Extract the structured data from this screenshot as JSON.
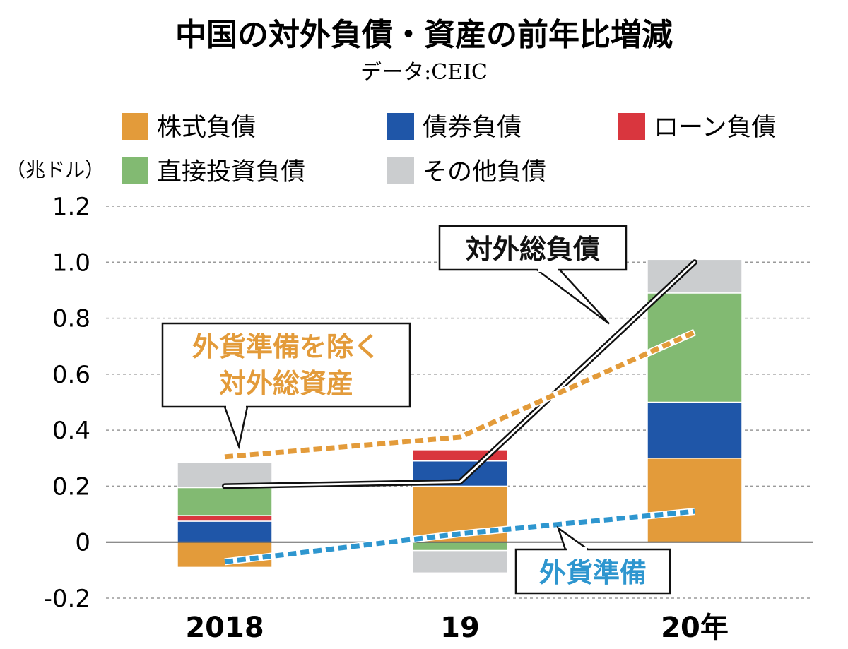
{
  "chart_data": {
    "type": "bar",
    "title": "中国の対外負債・資産の前年比増減",
    "source": "データ:CEIC",
    "unit_label": "（兆ドル）",
    "categories": [
      "2018",
      "19",
      "20年"
    ],
    "ylim": [
      -0.2,
      1.2
    ],
    "yticks": [
      "1.2",
      "1.0",
      "0.8",
      "0.6",
      "0.4",
      "0.2",
      "0",
      "-0.2"
    ],
    "grid": true,
    "legend_position": "top",
    "series": [
      {
        "name": "株式負債",
        "color": "#E39B3A",
        "values": [
          -0.09,
          0.2,
          0.3
        ]
      },
      {
        "name": "債券負債",
        "color": "#1F56A8",
        "values": [
          0.075,
          0.09,
          0.2
        ]
      },
      {
        "name": "ローン負債",
        "color": "#D9363E",
        "values": [
          0.02,
          0.04,
          0.0
        ]
      },
      {
        "name": "直接投資負債",
        "color": "#82BA72",
        "values": [
          0.1,
          -0.03,
          0.39
        ]
      },
      {
        "name": "その他負債",
        "color": "#CBCDCF",
        "values": [
          0.09,
          -0.08,
          0.12
        ]
      }
    ],
    "lines": [
      {
        "name": "対外総負債",
        "style": "solid-outline",
        "values": [
          0.2,
          0.215,
          1.0
        ]
      },
      {
        "name": "外貨準備を除く対外総資産",
        "style": "dashed",
        "color": "#E39B3A",
        "values": [
          0.305,
          0.375,
          0.75
        ]
      },
      {
        "name": "外貨準備",
        "style": "dashed",
        "color": "#2E96CF",
        "values": [
          -0.07,
          0.03,
          0.11
        ]
      }
    ],
    "annotations": [
      {
        "series": "対外総負債",
        "lines": [
          "対外総負債"
        ]
      },
      {
        "series": "外貨準備を除く対外総資産",
        "lines": [
          "外貨準備を除く",
          "対外総資産"
        ]
      },
      {
        "series": "外貨準備",
        "lines": [
          "外貨準備"
        ]
      }
    ]
  }
}
